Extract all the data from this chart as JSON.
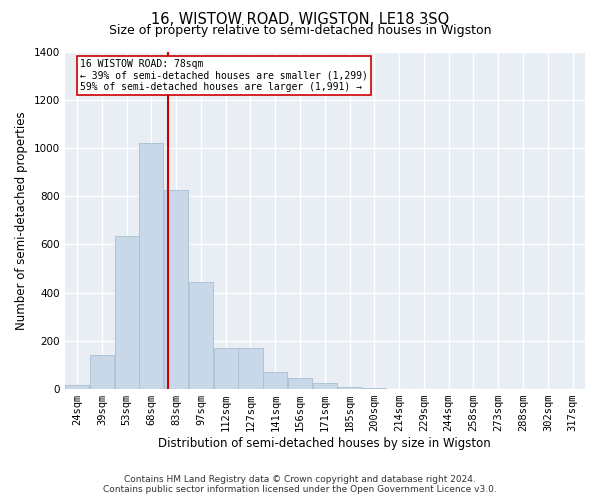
{
  "title": "16, WISTOW ROAD, WIGSTON, LE18 3SQ",
  "subtitle": "Size of property relative to semi-detached houses in Wigston",
  "xlabel": "Distribution of semi-detached houses by size in Wigston",
  "ylabel": "Number of semi-detached properties",
  "footnote1": "Contains HM Land Registry data © Crown copyright and database right 2024.",
  "footnote2": "Contains public sector information licensed under the Open Government Licence v3.0.",
  "bin_labels": [
    "24sqm",
    "39sqm",
    "53sqm",
    "68sqm",
    "83sqm",
    "97sqm",
    "112sqm",
    "127sqm",
    "141sqm",
    "156sqm",
    "171sqm",
    "185sqm",
    "200sqm",
    "214sqm",
    "229sqm",
    "244sqm",
    "258sqm",
    "273sqm",
    "288sqm",
    "302sqm",
    "317sqm"
  ],
  "bar_heights": [
    15,
    140,
    635,
    1020,
    825,
    445,
    170,
    170,
    70,
    45,
    25,
    10,
    5,
    2,
    1,
    0,
    0,
    0,
    0,
    0,
    0
  ],
  "bar_color": "#c8d8e8",
  "bar_edge_color": "#a8bfd0",
  "red_line_index": 3.65,
  "red_line_color": "#cc0000",
  "annotation_text": "16 WISTOW ROAD: 78sqm\n← 39% of semi-detached houses are smaller (1,299)\n59% of semi-detached houses are larger (1,991) →",
  "annotation_box_color": "#ffffff",
  "annotation_box_edge": "#cc0000",
  "ylim": [
    0,
    1400
  ],
  "yticks": [
    0,
    200,
    400,
    600,
    800,
    1000,
    1200,
    1400
  ],
  "background_color": "#e8eef4",
  "grid_color": "#ffffff",
  "title_fontsize": 10.5,
  "subtitle_fontsize": 9,
  "tick_fontsize": 7.5,
  "xlabel_fontsize": 8.5,
  "ylabel_fontsize": 8.5,
  "footnote_fontsize": 6.5
}
